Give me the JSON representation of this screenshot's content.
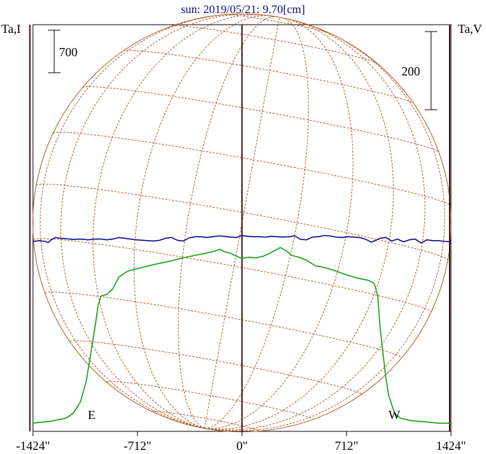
{
  "chart_data": {
    "type": "line",
    "title": "sun: 2019/05/21: 9.70[cm]",
    "left_axis_label": "Ta,I",
    "right_axis_label": "Ta,V",
    "scale_bars": {
      "left": {
        "label": "700"
      },
      "right": {
        "label": "200"
      }
    },
    "limb_labels": {
      "east": "E",
      "west": "W"
    },
    "x_ticks": [
      {
        "value": -1424,
        "label": "-1424\""
      },
      {
        "value": -712,
        "label": "-712\""
      },
      {
        "value": 0,
        "label": "0\""
      },
      {
        "value": 712,
        "label": "712\""
      },
      {
        "value": 1424,
        "label": "1424\""
      }
    ],
    "xlim": [
      -1424,
      1424
    ],
    "limb_positions": [
      -1445,
      0,
      1415
    ],
    "solar_radius_arcsec": 1425,
    "colors": {
      "intensity": "#13a013",
      "polarization": "#0a0a8c",
      "grid": "#b05a28",
      "limb_lines": "#3a1010",
      "frame": "#000000",
      "title": "#0a0a8c"
    },
    "series": [
      {
        "name": "I",
        "color": "#13a013",
        "points": [
          [
            -1424,
            -100
          ],
          [
            -1300,
            -70
          ],
          [
            -1200,
            -20
          ],
          [
            -1150,
            60
          ],
          [
            -1100,
            250
          ],
          [
            -1060,
            600
          ],
          [
            -1030,
            1050
          ],
          [
            -1000,
            1500
          ],
          [
            -980,
            1830
          ],
          [
            -960,
            1990
          ],
          [
            -920,
            2020
          ],
          [
            -880,
            2110
          ],
          [
            -840,
            2300
          ],
          [
            -780,
            2400
          ],
          [
            -700,
            2450
          ],
          [
            -600,
            2510
          ],
          [
            -500,
            2560
          ],
          [
            -400,
            2620
          ],
          [
            -300,
            2670
          ],
          [
            -200,
            2720
          ],
          [
            -150,
            2760
          ],
          [
            -120,
            2720
          ],
          [
            -80,
            2700
          ],
          [
            -40,
            2650
          ],
          [
            0,
            2610
          ],
          [
            40,
            2630
          ],
          [
            100,
            2620
          ],
          [
            150,
            2650
          ],
          [
            200,
            2710
          ],
          [
            240,
            2760
          ],
          [
            260,
            2790
          ],
          [
            300,
            2740
          ],
          [
            340,
            2660
          ],
          [
            390,
            2630
          ],
          [
            440,
            2580
          ],
          [
            500,
            2490
          ],
          [
            560,
            2460
          ],
          [
            620,
            2420
          ],
          [
            700,
            2350
          ],
          [
            780,
            2290
          ],
          [
            860,
            2250
          ],
          [
            900,
            2200
          ],
          [
            925,
            2000
          ],
          [
            940,
            1500
          ],
          [
            960,
            1050
          ],
          [
            980,
            650
          ],
          [
            1000,
            350
          ],
          [
            1040,
            60
          ],
          [
            1080,
            -20
          ],
          [
            1150,
            -60
          ],
          [
            1250,
            -80
          ],
          [
            1330,
            -100
          ],
          [
            1424,
            -105
          ]
        ]
      },
      {
        "name": "V",
        "color": "#0a0a8c",
        "points": [
          [
            -1424,
            0
          ],
          [
            -1380,
            2
          ],
          [
            -1340,
            0
          ],
          [
            -1320,
            -3
          ],
          [
            -1300,
            4
          ],
          [
            -1270,
            10
          ],
          [
            -1240,
            8
          ],
          [
            -1200,
            7
          ],
          [
            -1150,
            5
          ],
          [
            -1100,
            6
          ],
          [
            -1050,
            4
          ],
          [
            -1000,
            6
          ],
          [
            -960,
            6
          ],
          [
            -920,
            4
          ],
          [
            -880,
            6
          ],
          [
            -840,
            10
          ],
          [
            -800,
            8
          ],
          [
            -760,
            6
          ],
          [
            -720,
            4
          ],
          [
            -680,
            3
          ],
          [
            -640,
            2
          ],
          [
            -600,
            1
          ],
          [
            -560,
            3
          ],
          [
            -520,
            8
          ],
          [
            -480,
            10
          ],
          [
            -440,
            3
          ],
          [
            -400,
            1
          ],
          [
            -360,
            9
          ],
          [
            -320,
            12
          ],
          [
            -280,
            12
          ],
          [
            -240,
            10
          ],
          [
            -200,
            12
          ],
          [
            -160,
            14
          ],
          [
            -120,
            13
          ],
          [
            -80,
            11
          ],
          [
            -40,
            10
          ],
          [
            0,
            15
          ],
          [
            40,
            13
          ],
          [
            80,
            12
          ],
          [
            120,
            12
          ],
          [
            160,
            11
          ],
          [
            200,
            13
          ],
          [
            240,
            12
          ],
          [
            280,
            11
          ],
          [
            320,
            12
          ],
          [
            360,
            14
          ],
          [
            400,
            5
          ],
          [
            440,
            4
          ],
          [
            480,
            11
          ],
          [
            520,
            12
          ],
          [
            560,
            15
          ],
          [
            600,
            14
          ],
          [
            640,
            11
          ],
          [
            680,
            10
          ],
          [
            720,
            12
          ],
          [
            760,
            11
          ],
          [
            800,
            10
          ],
          [
            840,
            6
          ],
          [
            880,
            -2
          ],
          [
            920,
            4
          ],
          [
            940,
            8
          ],
          [
            980,
            10
          ],
          [
            1020,
            1
          ],
          [
            1060,
            6
          ],
          [
            1100,
            -1
          ],
          [
            1140,
            4
          ],
          [
            1180,
            6
          ],
          [
            1220,
            -4
          ],
          [
            1260,
            4
          ],
          [
            1300,
            2
          ],
          [
            1340,
            2
          ],
          [
            1380,
            0
          ],
          [
            1424,
            -1
          ]
        ]
      }
    ]
  }
}
